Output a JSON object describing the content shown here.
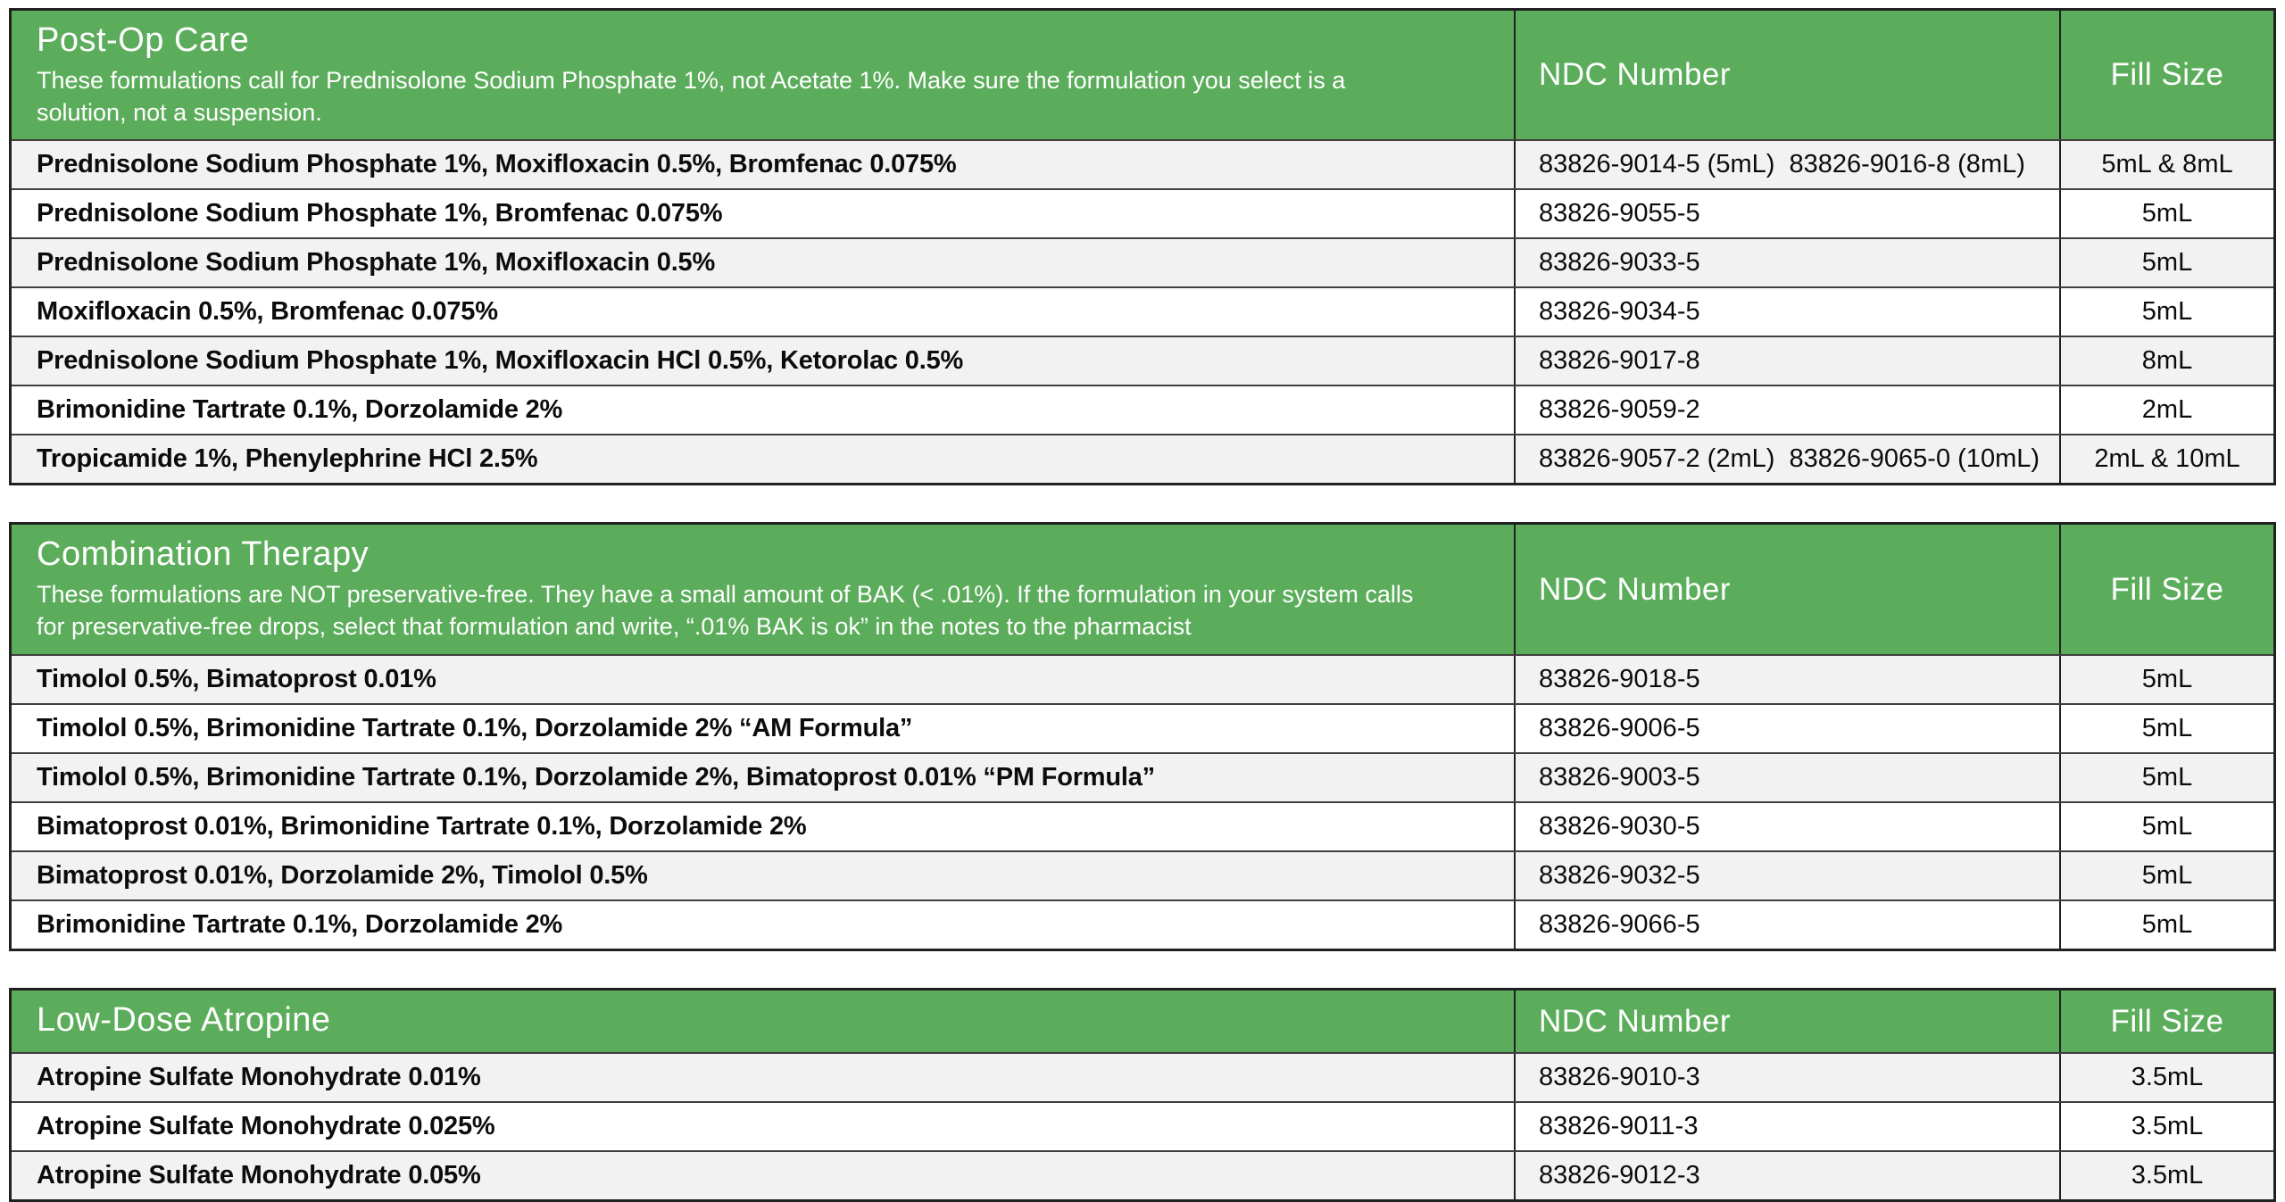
{
  "colors": {
    "header_green": "#5CAD5B",
    "row_stripe_gray": "#F2F2F2",
    "row_white": "#FFFFFF",
    "border_dark": "#212121",
    "header_text": "#FFFFFF",
    "body_text": "#0C0C0C"
  },
  "tables": [
    {
      "title": "Post-Op Care",
      "subtitle": "These formulations call for Prednisolone Sodium Phosphate 1%, not Acetate 1%. Make sure the formulation you select is a solution, not a suspension.",
      "ndc_header": "NDC Number",
      "fill_header": "Fill Size",
      "rows": [
        {
          "formulation": "Prednisolone Sodium Phosphate 1%, Moxifloxacin 0.5%, Bromfenac 0.075%",
          "ndc": "83826-9014-5 (5mL)  83826-9016-8 (8mL)",
          "fill": "5mL & 8mL"
        },
        {
          "formulation": "Prednisolone Sodium Phosphate 1%, Bromfenac 0.075%",
          "ndc": "83826-9055-5",
          "fill": "5mL"
        },
        {
          "formulation": "Prednisolone Sodium Phosphate 1%, Moxifloxacin 0.5%",
          "ndc": "83826-9033-5",
          "fill": "5mL"
        },
        {
          "formulation": "Moxifloxacin 0.5%, Bromfenac 0.075%",
          "ndc": "83826-9034-5",
          "fill": "5mL"
        },
        {
          "formulation": "Prednisolone Sodium Phosphate 1%, Moxifloxacin HCl 0.5%, Ketorolac 0.5%",
          "ndc": "83826-9017-8",
          "fill": "8mL"
        },
        {
          "formulation": "Brimonidine Tartrate 0.1%, Dorzolamide 2%",
          "ndc": "83826-9059-2",
          "fill": "2mL"
        },
        {
          "formulation": "Tropicamide 1%, Phenylephrine HCl 2.5%",
          "ndc": "83826-9057-2 (2mL)  83826-9065-0 (10mL)",
          "fill": "2mL & 10mL"
        }
      ]
    },
    {
      "title": "Combination Therapy",
      "subtitle": "These formulations are NOT preservative-free. They have a small amount of BAK (< .01%). If the formulation in your system calls for preservative-free drops, select that formulation and write, “.01% BAK is ok” in the notes to the pharmacist",
      "ndc_header": "NDC Number",
      "fill_header": "Fill Size",
      "rows": [
        {
          "formulation": "Timolol 0.5%, Bimatoprost 0.01%",
          "ndc": "83826-9018-5",
          "fill": "5mL"
        },
        {
          "formulation": "Timolol 0.5%, Brimonidine Tartrate 0.1%, Dorzolamide 2% “AM Formula”",
          "ndc": "83826-9006-5",
          "fill": "5mL"
        },
        {
          "formulation": "Timolol 0.5%, Brimonidine Tartrate 0.1%, Dorzolamide 2%, Bimatoprost 0.01% “PM Formula”",
          "ndc": "83826-9003-5",
          "fill": "5mL"
        },
        {
          "formulation": "Bimatoprost 0.01%, Brimonidine Tartrate 0.1%, Dorzolamide 2%",
          "ndc": "83826-9030-5",
          "fill": "5mL"
        },
        {
          "formulation": "Bimatoprost 0.01%, Dorzolamide 2%, Timolol 0.5%",
          "ndc": "83826-9032-5",
          "fill": "5mL"
        },
        {
          "formulation": "Brimonidine Tartrate 0.1%, Dorzolamide 2%",
          "ndc": "83826-9066-5",
          "fill": "5mL"
        }
      ]
    },
    {
      "title": "Low-Dose Atropine",
      "subtitle": "",
      "ndc_header": "NDC Number",
      "fill_header": "Fill Size",
      "rows": [
        {
          "formulation": "Atropine Sulfate Monohydrate 0.01%",
          "ndc": "83826-9010-3",
          "fill": "3.5mL"
        },
        {
          "formulation": "Atropine Sulfate Monohydrate 0.025%",
          "ndc": "83826-9011-3",
          "fill": "3.5mL"
        },
        {
          "formulation": "Atropine Sulfate Monohydrate 0.05%",
          "ndc": "83826-9012-3",
          "fill": "3.5mL"
        }
      ]
    }
  ]
}
